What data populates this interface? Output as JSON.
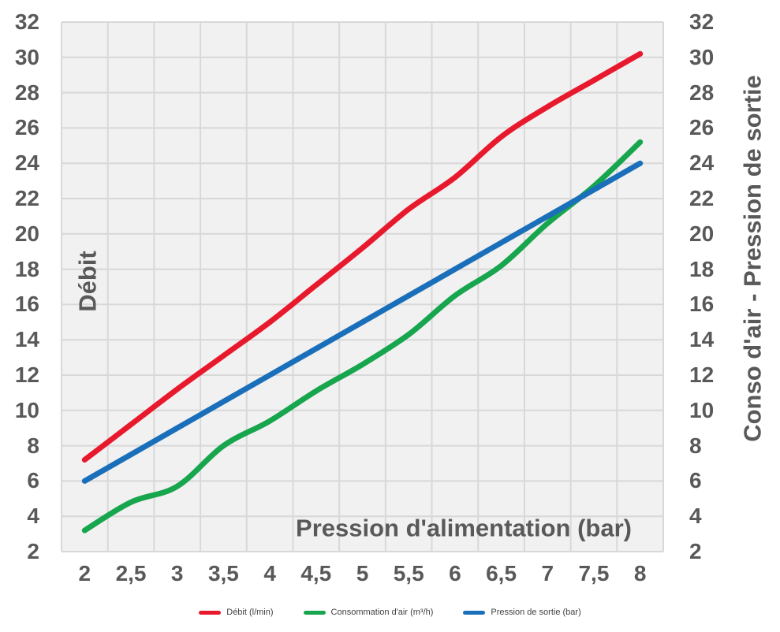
{
  "chart_data": {
    "type": "line",
    "x_axis": {
      "title": "Pression d'alimentation (bar)",
      "categories": [
        "2",
        "2,5",
        "3",
        "3,5",
        "4",
        "4,5",
        "5",
        "5,5",
        "6",
        "6,5",
        "7",
        "7,5",
        "8"
      ]
    },
    "left_axis": {
      "title": "Débit",
      "min": 2,
      "max": 32,
      "tick_step": 2,
      "ticks": [
        32,
        30,
        28,
        26,
        24,
        22,
        20,
        18,
        16,
        14,
        12,
        10,
        8,
        6,
        4,
        2
      ]
    },
    "right_axis": {
      "title": "Conso d'air - Pression de sortie",
      "ticks": [
        32,
        30,
        28,
        26,
        24,
        22,
        20,
        18,
        16,
        14,
        12,
        10,
        8,
        6,
        4,
        2
      ]
    },
    "grid": true,
    "legend_position": "bottom",
    "series": [
      {
        "name": "Débit (l/min)",
        "color": "#e8192d",
        "values": [
          7.2,
          9.2,
          11.2,
          13.1,
          15.0,
          17.1,
          19.2,
          21.4,
          23.2,
          25.5,
          27.2,
          28.7,
          30.2
        ]
      },
      {
        "name": "Consommation d'air (m³/h)",
        "color": "#17a54d",
        "values": [
          3.2,
          4.8,
          5.7,
          8.0,
          9.4,
          11.1,
          12.6,
          14.3,
          16.5,
          18.2,
          20.6,
          22.7,
          25.2
        ]
      },
      {
        "name": "Pression de sortie (bar)",
        "color": "#1a6fba",
        "values": [
          6,
          7.5,
          9,
          10.5,
          12,
          13.5,
          15,
          16.5,
          18,
          19.5,
          21,
          22.5,
          24
        ]
      }
    ]
  },
  "styles": {
    "plot_background": "#f1f1f1",
    "grid_color": "#d8d8d8",
    "tick_color": "#595959",
    "axis_title_color": "#595959",
    "legend_text_color": "#3f3f3f"
  }
}
